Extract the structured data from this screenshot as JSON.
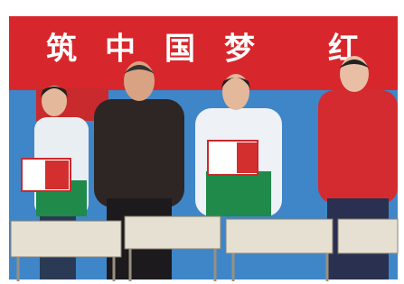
{
  "banner": {
    "characters": [
      "筑",
      "中",
      "国",
      "梦",
      "红"
    ]
  }
}
